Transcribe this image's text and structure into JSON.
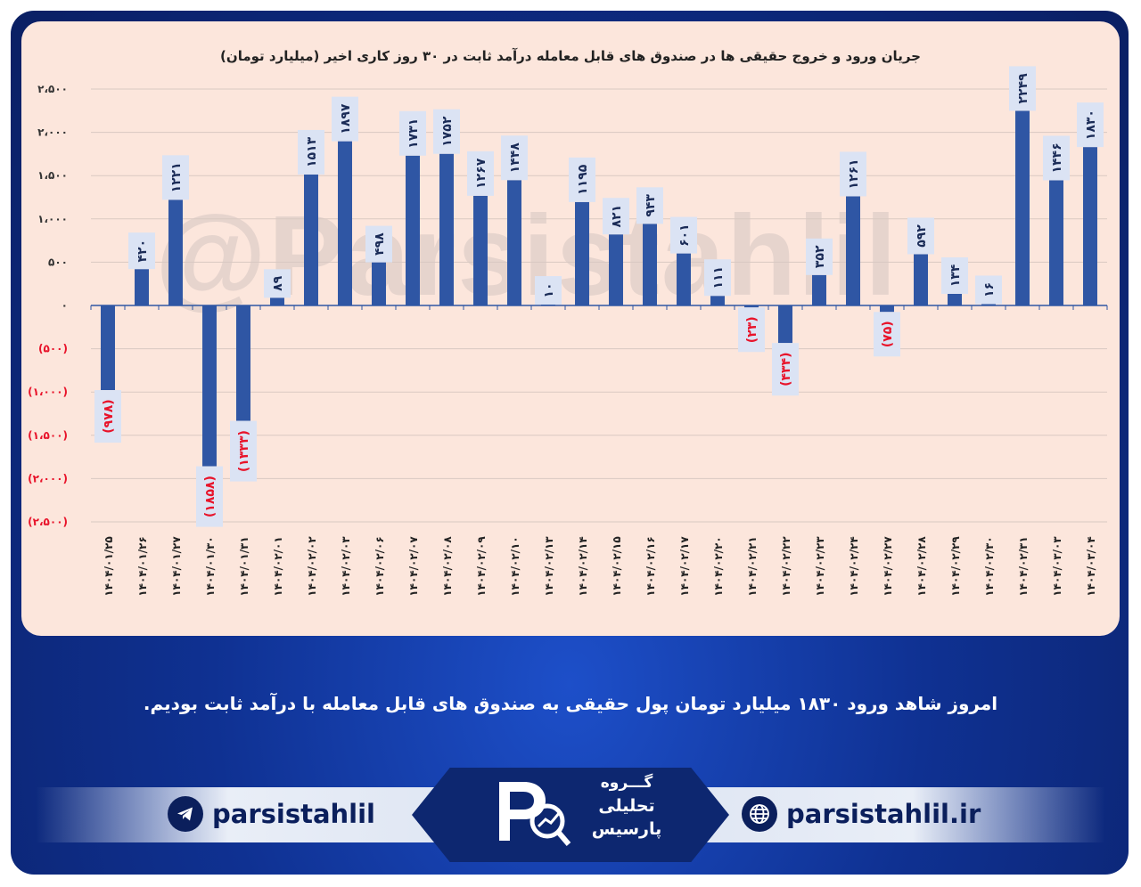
{
  "chart_data": {
    "type": "bar",
    "title": "جریان ورود و خروج حقیقی ها در صندوق های قابل معامله درآمد ثابت در ۳۰ روز کاری اخیر (میلیارد تومان)",
    "xlabel": "",
    "ylabel": "",
    "ylim": [
      -2500,
      2500
    ],
    "yticks": [
      {
        "value": 2500,
        "label": "۲،۵۰۰"
      },
      {
        "value": 2000,
        "label": "۲،۰۰۰"
      },
      {
        "value": 1500,
        "label": "۱،۵۰۰"
      },
      {
        "value": 1000,
        "label": "۱،۰۰۰"
      },
      {
        "value": 500,
        "label": "۵۰۰"
      },
      {
        "value": 0,
        "label": "۰"
      },
      {
        "value": -500,
        "label": "(۵۰۰)"
      },
      {
        "value": -1000,
        "label": "(۱،۰۰۰)"
      },
      {
        "value": -1500,
        "label": "(۱،۵۰۰)"
      },
      {
        "value": -2000,
        "label": "(۲،۰۰۰)"
      },
      {
        "value": -2500,
        "label": "(۲،۵۰۰)"
      }
    ],
    "grid": true,
    "bar_color": "#2f56a4",
    "negative_label_color": "#e8132a",
    "categories": [
      "۱۴۰۴/۰۱/۲۵",
      "۱۴۰۴/۰۱/۲۶",
      "۱۴۰۴/۰۱/۲۷",
      "۱۴۰۴/۰۱/۳۰",
      "۱۴۰۴/۰۱/۳۱",
      "۱۴۰۴/۰۲/۰۱",
      "۱۴۰۴/۰۲/۰۲",
      "۱۴۰۴/۰۲/۰۳",
      "۱۴۰۴/۰۲/۰۶",
      "۱۴۰۴/۰۲/۰۷",
      "۱۴۰۴/۰۲/۰۸",
      "۱۴۰۴/۰۲/۰۹",
      "۱۴۰۴/۰۲/۱۰",
      "۱۴۰۴/۰۲/۱۳",
      "۱۴۰۴/۰۲/۱۴",
      "۱۴۰۴/۰۲/۱۵",
      "۱۴۰۴/۰۲/۱۶",
      "۱۴۰۴/۰۲/۱۷",
      "۱۴۰۴/۰۲/۲۰",
      "۱۴۰۴/۰۲/۲۱",
      "۱۴۰۴/۰۲/۲۲",
      "۱۴۰۴/۰۲/۲۳",
      "۱۴۰۴/۰۲/۲۴",
      "۱۴۰۴/۰۲/۲۷",
      "۱۴۰۴/۰۲/۲۸",
      "۱۴۰۴/۰۲/۲۹",
      "۱۴۰۴/۰۲/۳۰",
      "۱۴۰۴/۰۲/۳۱",
      "۱۴۰۴/۰۳/۰۳",
      "۱۴۰۴/۰۳/۰۴"
    ],
    "values": [
      -978,
      420,
      1221,
      -1858,
      -1333,
      89,
      1513,
      1897,
      498,
      1731,
      1752,
      1267,
      1448,
      10,
      1195,
      821,
      943,
      601,
      111,
      -23,
      -434,
      352,
      1261,
      -75,
      592,
      134,
      16,
      2249,
      1446,
      1830
    ],
    "data_labels": [
      "(۹۷۸)",
      "۴۲۰",
      "۱۲۲۱",
      "(۱۸۵۸)",
      "(۱۳۳۳)",
      "۸۹",
      "۱۵۱۳",
      "۱۸۹۷",
      "۴۹۸",
      "۱۷۳۱",
      "۱۷۵۲",
      "۱۲۶۷",
      "۱۴۴۸",
      "۱۰",
      "۱۱۹۵",
      "۸۲۱",
      "۹۴۳",
      "۶۰۱",
      "۱۱۱",
      "(۲۳)",
      "(۴۳۴)",
      "۳۵۲",
      "۱۲۶۱",
      "(۷۵)",
      "۵۹۲",
      "۱۳۴",
      "۱۶",
      "۲۲۴۹",
      "۱۴۴۶",
      "۱۸۳۰"
    ]
  },
  "watermark": "@Parsistahlil",
  "caption": "امروز شاهد ورود ۱۸۳۰ میلیارد تومان پول حقیقی به صندوق های قابل معامله با درآمد ثابت بودیم.",
  "footer": {
    "telegram_handle": "parsistahlil",
    "website": "parsistahlil.ir",
    "logo_lines": [
      "گـــروه",
      "تحلیلی",
      "پارسیس"
    ]
  }
}
